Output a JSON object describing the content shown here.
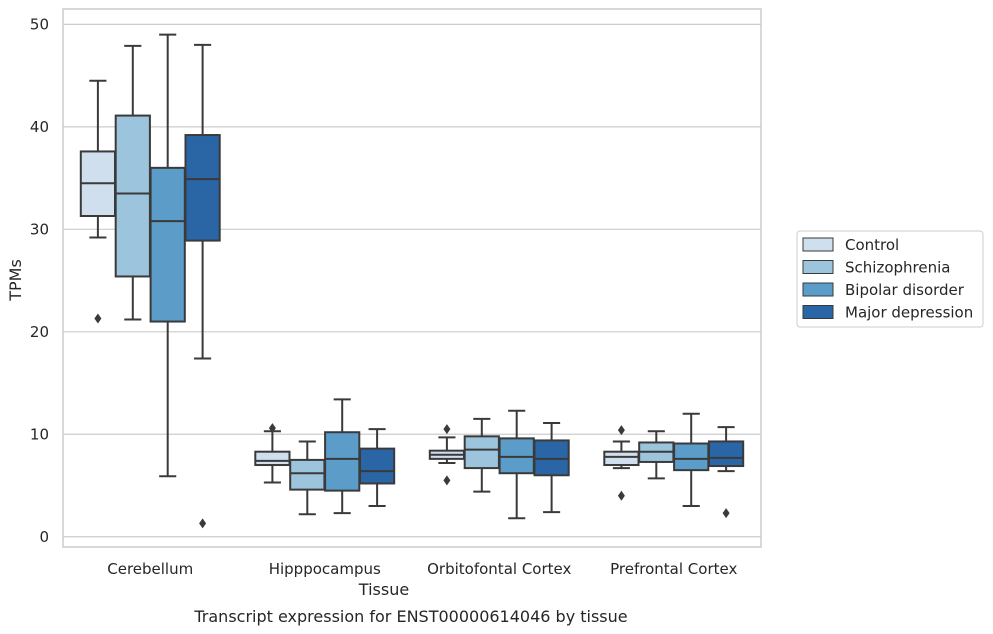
{
  "chart_data": {
    "type": "box",
    "caption": "Transcript expression for ENST00000614046 by tissue",
    "xlabel": "Tissue",
    "ylabel": "TPMs",
    "ylim": [
      -1,
      51.5
    ],
    "yticks": [
      0,
      10,
      20,
      30,
      40,
      50
    ],
    "grid": true,
    "legend_position": "right",
    "categories": [
      "Cerebellum",
      "Hipppocampus",
      "Orbitofontal Cortex",
      "Prefrontal Cortex"
    ],
    "series": [
      {
        "name": "Control",
        "color": "#cfdfee",
        "boxes": [
          {
            "whisker_low": 29.2,
            "q1": 31.3,
            "median": 34.5,
            "q3": 37.6,
            "whisker_high": 44.5,
            "outliers": [
              21.3
            ]
          },
          {
            "whisker_low": 5.3,
            "q1": 7.0,
            "median": 7.4,
            "q3": 8.3,
            "whisker_high": 10.3,
            "outliers": [
              10.6
            ]
          },
          {
            "whisker_low": 7.2,
            "q1": 7.6,
            "median": 8.0,
            "q3": 8.4,
            "whisker_high": 9.7,
            "outliers": [
              10.5,
              5.5
            ]
          },
          {
            "whisker_low": 6.7,
            "q1": 7.0,
            "median": 7.8,
            "q3": 8.3,
            "whisker_high": 9.3,
            "outliers": [
              10.4,
              4.0
            ]
          }
        ]
      },
      {
        "name": "Schizophrenia",
        "color": "#9dc4dd",
        "boxes": [
          {
            "whisker_low": 21.2,
            "q1": 25.4,
            "median": 33.5,
            "q3": 41.1,
            "whisker_high": 47.9,
            "outliers": []
          },
          {
            "whisker_low": 2.2,
            "q1": 4.6,
            "median": 6.2,
            "q3": 7.5,
            "whisker_high": 9.3,
            "outliers": []
          },
          {
            "whisker_low": 4.4,
            "q1": 6.7,
            "median": 8.5,
            "q3": 9.8,
            "whisker_high": 11.5,
            "outliers": []
          },
          {
            "whisker_low": 5.7,
            "q1": 7.3,
            "median": 8.3,
            "q3": 9.2,
            "whisker_high": 10.3,
            "outliers": []
          }
        ]
      },
      {
        "name": "Bipolar disorder",
        "color": "#5b9cc8",
        "boxes": [
          {
            "whisker_low": 5.9,
            "q1": 21.0,
            "median": 30.8,
            "q3": 36.0,
            "whisker_high": 49.0,
            "outliers": []
          },
          {
            "whisker_low": 2.3,
            "q1": 4.5,
            "median": 7.6,
            "q3": 10.2,
            "whisker_high": 13.4,
            "outliers": []
          },
          {
            "whisker_low": 1.8,
            "q1": 6.2,
            "median": 7.8,
            "q3": 9.6,
            "whisker_high": 12.3,
            "outliers": []
          },
          {
            "whisker_low": 3.0,
            "q1": 6.5,
            "median": 7.6,
            "q3": 9.1,
            "whisker_high": 12.0,
            "outliers": []
          }
        ]
      },
      {
        "name": "Major depression",
        "color": "#2a66a5",
        "boxes": [
          {
            "whisker_low": 17.4,
            "q1": 28.9,
            "median": 34.9,
            "q3": 39.2,
            "whisker_high": 48.0,
            "outliers": [
              1.3
            ]
          },
          {
            "whisker_low": 3.0,
            "q1": 5.2,
            "median": 6.4,
            "q3": 8.6,
            "whisker_high": 10.5,
            "outliers": []
          },
          {
            "whisker_low": 2.4,
            "q1": 6.0,
            "median": 7.6,
            "q3": 9.4,
            "whisker_high": 11.1,
            "outliers": []
          },
          {
            "whisker_low": 6.4,
            "q1": 6.9,
            "median": 7.7,
            "q3": 9.3,
            "whisker_high": 10.7,
            "outliers": [
              2.3
            ]
          }
        ]
      }
    ]
  }
}
